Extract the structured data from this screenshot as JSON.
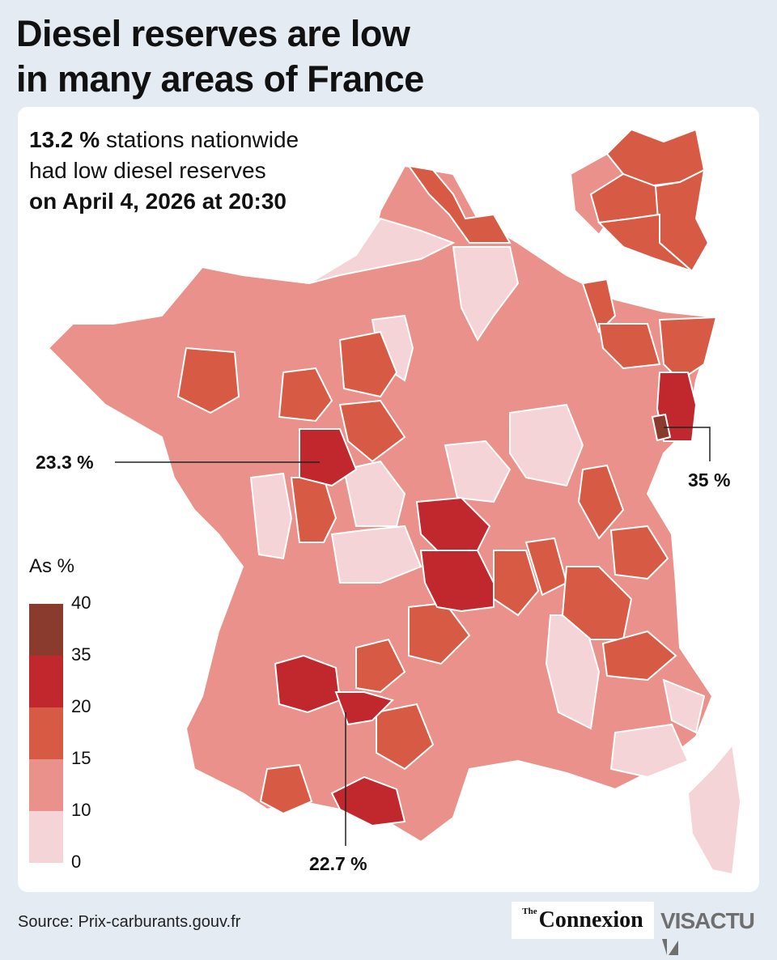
{
  "title_line1": "Diesel reserves are low",
  "title_line2": "in many areas of France",
  "subtitle": {
    "national_value": "13.2 %",
    "line1_rest": " stations nationwide",
    "line2": "had low diesel reserves",
    "line3": "on April 4, 2026 at 20:30"
  },
  "callouts": {
    "west": "23.3 %",
    "east": "35 %",
    "south": "22.7 %"
  },
  "legend": {
    "title": "As %",
    "ticks": [
      "40",
      "35",
      "20",
      "15",
      "10",
      "0"
    ],
    "classes": [
      {
        "range": "35-40",
        "color": "#8b3a2e"
      },
      {
        "range": "20-35",
        "color": "#c0282d"
      },
      {
        "range": "15-20",
        "color": "#d65a44"
      },
      {
        "range": "10-15",
        "color": "#e9918a"
      },
      {
        "range": "0-10",
        "color": "#f4d4d6"
      }
    ]
  },
  "source": "Source: Prix-carburants.gouv.fr",
  "brands": {
    "publisher": "Connexion",
    "publisher_small": "The",
    "partner": "VISACTU"
  }
}
